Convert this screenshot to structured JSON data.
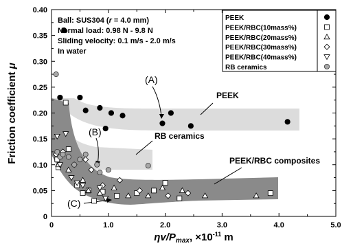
{
  "chart_data": {
    "type": "scatter",
    "xlabel_main": "ηv/P",
    "xlabel_sub": "max",
    "xlabel_unit": ", ×10",
    "xlabel_exp": "-11",
    "xlabel_tail": " m",
    "ylabel": "Friction coefficient μ",
    "xlim": [
      0,
      5
    ],
    "ylim": [
      0,
      0.4
    ],
    "x_ticks": [
      "0",
      "1.0",
      "2.0",
      "3.0",
      "4.0",
      "5.0"
    ],
    "x_tick_values": [
      0,
      1,
      2,
      3,
      4,
      5
    ],
    "y_ticks": [
      "0",
      "0.05",
      "0.10",
      "0.15",
      "0.20",
      "0.25",
      "0.30",
      "0.35",
      "0.40"
    ],
    "y_tick_values": [
      0,
      0.05,
      0.1,
      0.15,
      0.2,
      0.25,
      0.3,
      0.35,
      0.4
    ],
    "conditions": [
      {
        "prefix": "Ball: SUS304 (",
        "italic": "r",
        "suffix": " = 4.0 mm)"
      },
      {
        "prefix": "Normal load: 0.98 N - 9.8 N",
        "italic": "",
        "suffix": ""
      },
      {
        "prefix": "Sliding velocity: 0.1 m/s - 2.0 m/s",
        "italic": "",
        "suffix": ""
      },
      {
        "prefix": "In water",
        "italic": "",
        "suffix": ""
      }
    ],
    "legend": [
      {
        "label": "PEEK",
        "marker": "filled-circle"
      },
      {
        "label": "PEEK/RBC(10mass%)",
        "marker": "open-square"
      },
      {
        "label": "PEEK/RBC(20mass%)",
        "marker": "open-triangle-up"
      },
      {
        "label": "PEEK/RBC(30mass%)",
        "marker": "open-diamond"
      },
      {
        "label": "PEEK/RBC(40mass%)",
        "marker": "open-triangle-down"
      },
      {
        "label": "RB ceramics",
        "marker": "gray-circle"
      }
    ],
    "bands": [
      {
        "label": "PEEK",
        "color": "#dcdcdc"
      },
      {
        "label": "RB ceramics",
        "color": "#dcdcdc"
      },
      {
        "label": "PEEK/RBC composites",
        "color": "#8a8a8a"
      }
    ],
    "callouts": [
      "(A)",
      "(B)",
      "(C)"
    ],
    "series": [
      {
        "name": "PEEK",
        "marker": "filled-circle",
        "points": [
          [
            0.22,
            0.36
          ],
          [
            0.15,
            0.23
          ],
          [
            0.5,
            0.23
          ],
          [
            0.6,
            0.205
          ],
          [
            0.85,
            0.21
          ],
          [
            0.95,
            0.17
          ],
          [
            1.05,
            0.2
          ],
          [
            1.25,
            0.195
          ],
          [
            1.95,
            0.18
          ],
          [
            2.1,
            0.2
          ],
          [
            2.45,
            0.175
          ],
          [
            4.15,
            0.183
          ]
        ]
      },
      {
        "name": "PEEK/RBC(10mass%)",
        "marker": "open-square",
        "points": [
          [
            0.1,
            0.11
          ],
          [
            0.12,
            0.095
          ],
          [
            0.25,
            0.22
          ],
          [
            0.3,
            0.13
          ],
          [
            0.45,
            0.06
          ],
          [
            0.55,
            0.045
          ],
          [
            0.65,
            0.05
          ],
          [
            0.75,
            0.03
          ],
          [
            0.9,
            0.048
          ],
          [
            1.15,
            0.04
          ],
          [
            1.5,
            0.045
          ],
          [
            1.8,
            0.05
          ],
          [
            2.0,
            0.065
          ],
          [
            2.25,
            0.035
          ],
          [
            3.85,
            0.045
          ]
        ]
      },
      {
        "name": "PEEK/RBC(20mass%)",
        "marker": "open-triangle-up",
        "points": [
          [
            0.12,
            0.1
          ],
          [
            0.3,
            0.09
          ],
          [
            0.55,
            0.07
          ],
          [
            0.65,
            0.05
          ],
          [
            0.85,
            0.045
          ],
          [
            1.1,
            0.055
          ],
          [
            1.35,
            0.04
          ],
          [
            1.7,
            0.04
          ],
          [
            1.95,
            0.055
          ],
          [
            2.3,
            0.05
          ],
          [
            2.7,
            0.04
          ],
          [
            3.6,
            0.04
          ]
        ]
      },
      {
        "name": "PEEK/RBC(30mass%)",
        "marker": "open-diamond",
        "points": [
          [
            0.08,
            0.12
          ],
          [
            0.2,
            0.125
          ],
          [
            0.4,
            0.1
          ],
          [
            0.6,
            0.11
          ],
          [
            0.7,
            0.09
          ],
          [
            0.9,
            0.06
          ],
          [
            1.2,
            0.07
          ],
          [
            1.55,
            0.05
          ],
          [
            2.05,
            0.04
          ],
          [
            2.4,
            0.045
          ]
        ]
      },
      {
        "name": "PEEK/RBC(40mass%)",
        "marker": "open-triangle-down",
        "points": [
          [
            0.1,
            0.155
          ],
          [
            0.15,
            0.1
          ],
          [
            0.25,
            0.16
          ],
          [
            0.35,
            0.075
          ],
          [
            0.45,
            0.065
          ],
          [
            0.55,
            0.06
          ],
          [
            0.85,
            0.055
          ],
          [
            0.95,
            0.035
          ]
        ]
      },
      {
        "name": "RB ceramics",
        "marker": "gray-circle",
        "points": [
          [
            0.08,
            0.275
          ],
          [
            0.1,
            0.125
          ],
          [
            0.15,
            0.115
          ],
          [
            0.2,
            0.12
          ],
          [
            0.3,
            0.115
          ],
          [
            0.4,
            0.1
          ],
          [
            0.5,
            0.11
          ],
          [
            0.6,
            0.12
          ],
          [
            0.8,
            0.1
          ],
          [
            0.85,
            0.085
          ],
          [
            1.0,
            0.09
          ],
          [
            1.7,
            0.098
          ]
        ]
      }
    ]
  }
}
